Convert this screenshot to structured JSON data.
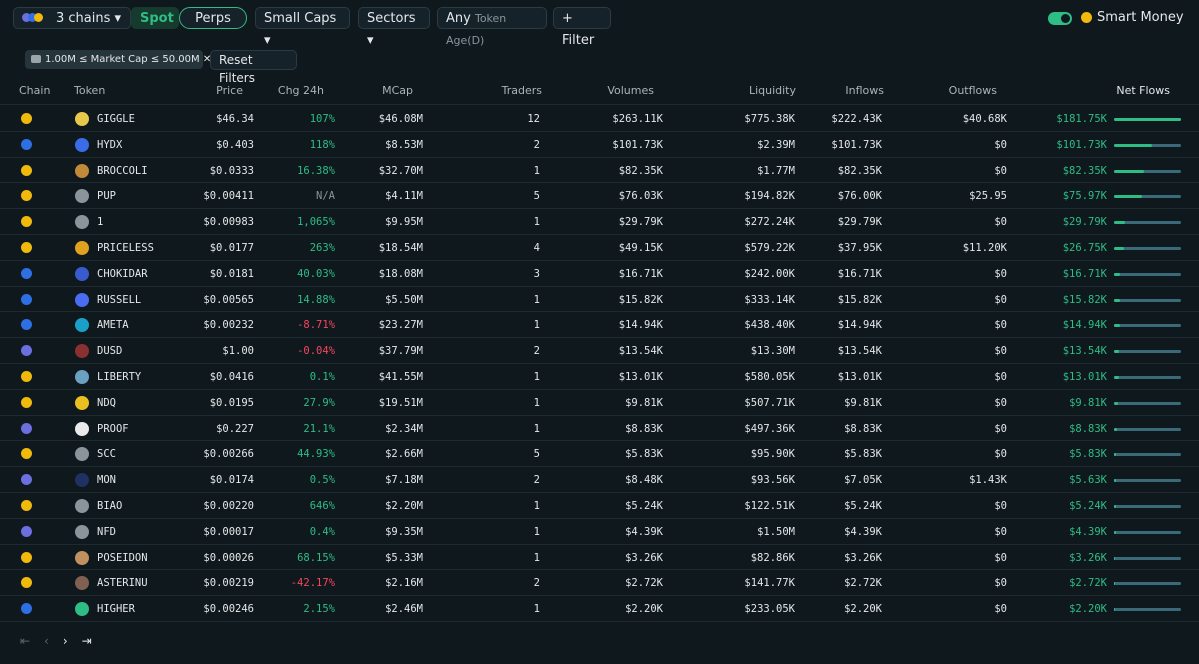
{
  "toolbar": {
    "chains": "3 chains",
    "spot": "Spot",
    "perps": "Perps",
    "market_cap": "Small Caps",
    "sectors": "Sectors",
    "age_value": "Any",
    "age_label": "Token Age(D)",
    "filter": "Filter",
    "smart_money": "Smart Money"
  },
  "filters": {
    "chip": "1.00M ≤ Market Cap ≤ 50.00M",
    "reset": "Reset Filters"
  },
  "table": {
    "headers": {
      "chain": "Chain",
      "token": "Token",
      "price": "Price",
      "chg": "Chg 24h",
      "mcap": "MCap",
      "traders": "Traders",
      "volumes": "Volumes",
      "liquidity": "Liquidity",
      "inflows": "Inflows",
      "outflows": "Outflows",
      "net_flows": "Net Flows"
    },
    "rows": [
      {
        "chain": "#f0b90b",
        "name": "GIGGLE",
        "price": "$46.34",
        "chg": "107%",
        "mcap": "$46.08M",
        "traders": "12",
        "volumes": "$263.11K",
        "liquidity": "$775.38K",
        "inflows": "$222.43K",
        "outflows": "$40.68K",
        "net_flows": "$181.75K"
      },
      {
        "chain": "#2f6fe4",
        "name": "HYDX",
        "price": "$0.403",
        "chg": "118%",
        "mcap": "$8.53M",
        "traders": "2",
        "volumes": "$101.73K",
        "liquidity": "$2.39M",
        "inflows": "$101.73K",
        "outflows": "$0",
        "net_flows": "$101.73K"
      },
      {
        "chain": "#f0b90b",
        "name": "BROCCOLI",
        "price": "$0.0333",
        "chg": "16.38%",
        "mcap": "$32.70M",
        "traders": "1",
        "volumes": "$82.35K",
        "liquidity": "$1.77M",
        "inflows": "$82.35K",
        "outflows": "$0",
        "net_flows": "$82.35K"
      },
      {
        "chain": "#f0b90b",
        "name": "PUP",
        "price": "$0.00411",
        "chg": "N/A",
        "mcap": "$4.11M",
        "traders": "5",
        "volumes": "$76.03K",
        "liquidity": "$194.82K",
        "inflows": "$76.00K",
        "outflows": "$25.95",
        "net_flows": "$75.97K"
      },
      {
        "chain": "#f0b90b",
        "name": "1",
        "price": "$0.00983",
        "chg": "1,065%",
        "mcap": "$9.95M",
        "traders": "1",
        "volumes": "$29.79K",
        "liquidity": "$272.24K",
        "inflows": "$29.79K",
        "outflows": "$0",
        "net_flows": "$29.79K"
      },
      {
        "chain": "#f0b90b",
        "name": "PRICELESS",
        "price": "$0.0177",
        "chg": "263%",
        "mcap": "$18.54M",
        "traders": "4",
        "volumes": "$49.15K",
        "liquidity": "$579.22K",
        "inflows": "$37.95K",
        "outflows": "$11.20K",
        "net_flows": "$26.75K"
      },
      {
        "chain": "#2f6fe4",
        "name": "CHOKIDAR",
        "price": "$0.0181",
        "chg": "40.03%",
        "mcap": "$18.08M",
        "traders": "3",
        "volumes": "$16.71K",
        "liquidity": "$242.00K",
        "inflows": "$16.71K",
        "outflows": "$0",
        "net_flows": "$16.71K"
      },
      {
        "chain": "#2f6fe4",
        "name": "RUSSELL",
        "price": "$0.00565",
        "chg": "14.88%",
        "mcap": "$5.50M",
        "traders": "1",
        "volumes": "$15.82K",
        "liquidity": "$333.14K",
        "inflows": "$15.82K",
        "outflows": "$0",
        "net_flows": "$15.82K"
      },
      {
        "chain": "#2f6fe4",
        "name": "AMETA",
        "price": "$0.00232",
        "chg": "-8.71%",
        "mcap": "$23.27M",
        "traders": "1",
        "volumes": "$14.94K",
        "liquidity": "$438.40K",
        "inflows": "$14.94K",
        "outflows": "$0",
        "net_flows": "$14.94K"
      },
      {
        "chain": "#6b6fe0",
        "name": "DUSD",
        "price": "$1.00",
        "chg": "-0.04%",
        "mcap": "$37.79M",
        "traders": "2",
        "volumes": "$13.54K",
        "liquidity": "$13.30M",
        "inflows": "$13.54K",
        "outflows": "$0",
        "net_flows": "$13.54K"
      },
      {
        "chain": "#f0b90b",
        "name": "LIBERTY",
        "price": "$0.0416",
        "chg": "0.1%",
        "mcap": "$41.55M",
        "traders": "1",
        "volumes": "$13.01K",
        "liquidity": "$580.05K",
        "inflows": "$13.01K",
        "outflows": "$0",
        "net_flows": "$13.01K"
      },
      {
        "chain": "#f0b90b",
        "name": "NDQ",
        "price": "$0.0195",
        "chg": "27.9%",
        "mcap": "$19.51M",
        "traders": "1",
        "volumes": "$9.81K",
        "liquidity": "$507.71K",
        "inflows": "$9.81K",
        "outflows": "$0",
        "net_flows": "$9.81K"
      },
      {
        "chain": "#6b6fe0",
        "name": "PROOF",
        "price": "$0.227",
        "chg": "21.1%",
        "mcap": "$2.34M",
        "traders": "1",
        "volumes": "$8.83K",
        "liquidity": "$497.36K",
        "inflows": "$8.83K",
        "outflows": "$0",
        "net_flows": "$8.83K"
      },
      {
        "chain": "#f0b90b",
        "name": "SCC",
        "price": "$0.00266",
        "chg": "44.93%",
        "mcap": "$2.66M",
        "traders": "5",
        "volumes": "$5.83K",
        "liquidity": "$95.90K",
        "inflows": "$5.83K",
        "outflows": "$0",
        "net_flows": "$5.83K"
      },
      {
        "chain": "#6b6fe0",
        "name": "MON",
        "price": "$0.0174",
        "chg": "0.5%",
        "mcap": "$7.18M",
        "traders": "2",
        "volumes": "$8.48K",
        "liquidity": "$93.56K",
        "inflows": "$7.05K",
        "outflows": "$1.43K",
        "net_flows": "$5.63K"
      },
      {
        "chain": "#f0b90b",
        "name": "BIAO",
        "price": "$0.00220",
        "chg": "646%",
        "mcap": "$2.20M",
        "traders": "1",
        "volumes": "$5.24K",
        "liquidity": "$122.51K",
        "inflows": "$5.24K",
        "outflows": "$0",
        "net_flows": "$5.24K"
      },
      {
        "chain": "#6b6fe0",
        "name": "NFD",
        "price": "$0.00017",
        "chg": "0.4%",
        "mcap": "$9.35M",
        "traders": "1",
        "volumes": "$4.39K",
        "liquidity": "$1.50M",
        "inflows": "$4.39K",
        "outflows": "$0",
        "net_flows": "$4.39K"
      },
      {
        "chain": "#f0b90b",
        "name": "POSEIDON",
        "price": "$0.00026",
        "chg": "68.15%",
        "mcap": "$5.33M",
        "traders": "1",
        "volumes": "$3.26K",
        "liquidity": "$82.86K",
        "inflows": "$3.26K",
        "outflows": "$0",
        "net_flows": "$3.26K"
      },
      {
        "chain": "#f0b90b",
        "name": "ASTERINU",
        "price": "$0.00219",
        "chg": "-42.17%",
        "mcap": "$2.16M",
        "traders": "2",
        "volumes": "$2.72K",
        "liquidity": "$141.77K",
        "inflows": "$2.72K",
        "outflows": "$0",
        "net_flows": "$2.72K"
      },
      {
        "chain": "#2f6fe4",
        "name": "HIGHER",
        "price": "$0.00246",
        "chg": "2.15%",
        "mcap": "$2.46M",
        "traders": "1",
        "volumes": "$2.20K",
        "liquidity": "$233.05K",
        "inflows": "$2.20K",
        "outflows": "$0",
        "net_flows": "$2.20K"
      }
    ]
  }
}
